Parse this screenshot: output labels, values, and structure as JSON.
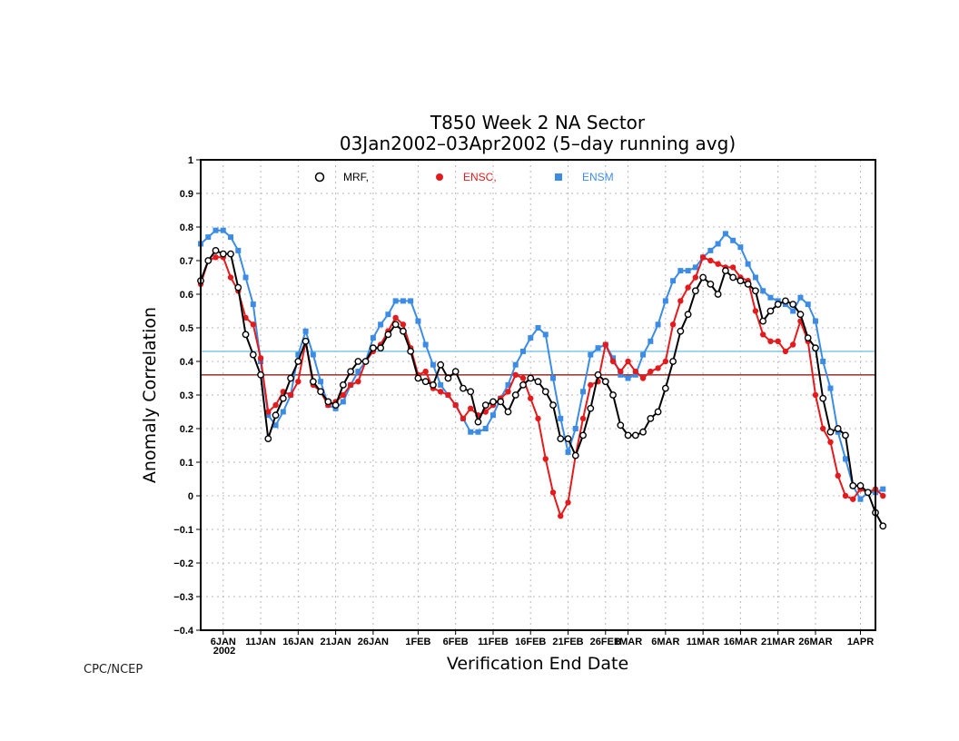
{
  "chart_data": {
    "type": "line",
    "title": "T850 Week 2 NA Sector",
    "subtitle": "03Jan2002–03Apr2002 (5–day running avg)",
    "xlabel": "Verification End Date",
    "ylabel": "Anomaly Correlation",
    "credit": "CPC/NCEP",
    "ylim": [
      -0.4,
      1.0
    ],
    "yticks": [
      "1",
      "0.9",
      "0.8",
      "0.7",
      "0.6",
      "0.5",
      "0.4",
      "0.3",
      "0.2",
      "0.1",
      "0",
      "−0.1",
      "−0.2",
      "−0.3",
      "−0.4"
    ],
    "ytick_values": [
      1.0,
      0.9,
      0.8,
      0.7,
      0.6,
      0.5,
      0.4,
      0.3,
      0.2,
      0.1,
      0.0,
      -0.1,
      -0.2,
      -0.3,
      -0.4
    ],
    "xlim_dates": [
      "2002-01-03",
      "2002-04-03"
    ],
    "xtick_dates": [
      "2002-01-06",
      "2002-01-11",
      "2002-01-16",
      "2002-01-21",
      "2002-01-26",
      "2002-02-01",
      "2002-02-06",
      "2002-02-11",
      "2002-02-16",
      "2002-02-21",
      "2002-02-26",
      "2002-03-01",
      "2002-03-06",
      "2002-03-11",
      "2002-03-16",
      "2002-03-21",
      "2002-03-26",
      "2002-04-01"
    ],
    "xtick_labels": [
      "6JAN",
      "11JAN",
      "16JAN",
      "21JAN",
      "26JAN",
      "1FEB",
      "6FEB",
      "11FEB",
      "16FEB",
      "21FEB",
      "26FEB",
      "1MAR",
      "6MAR",
      "11MAR",
      "16MAR",
      "21MAR",
      "26MAR",
      "1APR"
    ],
    "xtick_year": "2002",
    "grid": true,
    "legend_position": "top",
    "reference_lines": [
      {
        "value": 0.43,
        "color": "#87ceeb"
      },
      {
        "value": 0.36,
        "color": "#a0403c"
      }
    ],
    "x_start": "2002-01-03",
    "x_step_days": 1,
    "series": [
      {
        "name": "MRF,",
        "color": "#000000",
        "marker": "open-circle",
        "values": [
          0.64,
          0.7,
          0.73,
          0.72,
          0.72,
          0.62,
          0.48,
          0.42,
          0.36,
          0.17,
          0.24,
          0.29,
          0.35,
          0.4,
          0.46,
          0.34,
          0.31,
          0.28,
          0.27,
          0.33,
          0.37,
          0.4,
          0.4,
          0.44,
          0.44,
          0.48,
          0.51,
          0.49,
          0.43,
          0.35,
          0.34,
          0.33,
          0.39,
          0.35,
          0.37,
          0.32,
          0.31,
          0.22,
          0.27,
          0.28,
          0.28,
          0.25,
          0.3,
          0.33,
          0.35,
          0.34,
          0.31,
          0.27,
          0.17,
          0.17,
          0.12,
          0.18,
          0.26,
          0.36,
          0.34,
          0.3,
          0.21,
          0.18,
          0.18,
          0.19,
          0.23,
          0.25,
          0.32,
          0.4,
          0.49,
          0.54,
          0.61,
          0.65,
          0.63,
          0.6,
          0.67,
          0.65,
          0.64,
          0.63,
          0.61,
          0.52,
          0.55,
          0.57,
          0.58,
          0.57,
          0.54,
          0.47,
          0.44,
          0.29,
          0.19,
          0.2,
          0.18,
          0.03,
          0.03,
          0.01,
          -0.05,
          -0.09
        ]
      },
      {
        "name": "ENSC,",
        "color": "#e41a1c",
        "marker": "filled-circle",
        "values": [
          0.63,
          0.7,
          0.71,
          0.71,
          0.65,
          0.61,
          0.53,
          0.51,
          0.41,
          0.25,
          0.27,
          0.31,
          0.3,
          0.34,
          0.46,
          0.33,
          0.31,
          0.27,
          0.28,
          0.3,
          0.33,
          0.34,
          0.4,
          0.43,
          0.45,
          0.49,
          0.53,
          0.51,
          0.44,
          0.36,
          0.37,
          0.32,
          0.31,
          0.3,
          0.27,
          0.23,
          0.26,
          0.24,
          0.25,
          0.27,
          0.29,
          0.31,
          0.36,
          0.35,
          0.29,
          0.23,
          0.11,
          0.01,
          -0.06,
          -0.02,
          0.12,
          0.23,
          0.33,
          0.34,
          0.45,
          0.4,
          0.37,
          0.4,
          0.37,
          0.35,
          0.37,
          0.38,
          0.4,
          0.51,
          0.58,
          0.62,
          0.65,
          0.71,
          0.7,
          0.69,
          0.68,
          0.68,
          0.65,
          0.64,
          0.55,
          0.48,
          0.46,
          0.46,
          0.43,
          0.45,
          0.52,
          0.46,
          0.3,
          0.2,
          0.16,
          0.06,
          0.0,
          -0.01,
          0.02,
          0.01,
          0.02,
          0.0
        ]
      },
      {
        "name": "ENSM",
        "color": "#3c8ce6",
        "marker": "filled-square",
        "values": [
          0.75,
          0.77,
          0.79,
          0.79,
          0.77,
          0.73,
          0.65,
          0.57,
          0.4,
          0.24,
          0.21,
          0.25,
          0.3,
          0.42,
          0.49,
          0.42,
          0.34,
          0.27,
          0.26,
          0.28,
          0.33,
          0.37,
          0.4,
          0.47,
          0.51,
          0.54,
          0.58,
          0.58,
          0.58,
          0.52,
          0.45,
          0.39,
          0.33,
          0.3,
          0.27,
          0.23,
          0.19,
          0.19,
          0.2,
          0.24,
          0.29,
          0.33,
          0.39,
          0.43,
          0.47,
          0.5,
          0.48,
          0.35,
          0.23,
          0.13,
          0.2,
          0.31,
          0.42,
          0.44,
          0.45,
          0.41,
          0.36,
          0.35,
          0.36,
          0.42,
          0.46,
          0.51,
          0.58,
          0.64,
          0.67,
          0.67,
          0.68,
          0.71,
          0.73,
          0.75,
          0.78,
          0.76,
          0.74,
          0.69,
          0.65,
          0.61,
          0.59,
          0.58,
          0.57,
          0.55,
          0.59,
          0.57,
          0.52,
          0.4,
          0.32,
          0.19,
          0.11,
          0.03,
          -0.01,
          0.01,
          0.01,
          0.02
        ]
      }
    ]
  }
}
